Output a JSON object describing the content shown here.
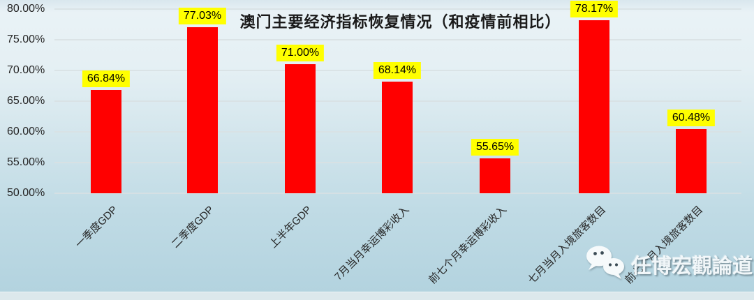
{
  "chart_data": {
    "type": "bar",
    "title": "澳门主要经济指标恢复情况（和疫情前相比）",
    "categories": [
      "一季度GDP",
      "二季度GDP",
      "上半年GDP",
      "7月当月幸运博彩收入",
      "前七个月幸运博彩收入",
      "七月当月入境旅客数目",
      "前七个月入境旅客数目"
    ],
    "values": [
      66.84,
      77.03,
      71.0,
      68.14,
      55.65,
      78.17,
      60.48
    ],
    "value_labels": [
      "66.84%",
      "77.03%",
      "71.00%",
      "68.14%",
      "55.65%",
      "78.17%",
      "60.48%"
    ],
    "ylim": [
      50,
      80
    ],
    "ytick_step": 5,
    "ytick_labels": [
      "50.00%",
      "55.00%",
      "60.00%",
      "65.00%",
      "70.00%",
      "75.00%",
      "80.00%"
    ],
    "grid": true,
    "legend_position": "none",
    "bar_color": "#ff0000",
    "value_label_bg": "#ffff00",
    "value_label_color": "#000000"
  },
  "watermark": {
    "text": "任博宏觀論道",
    "icon": "wechat-icon"
  }
}
